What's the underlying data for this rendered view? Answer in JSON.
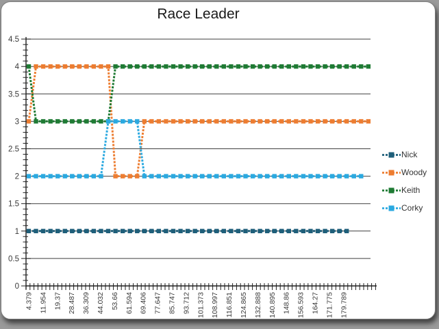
{
  "chart_data": {
    "type": "line",
    "title": "Race Leader",
    "xlabel": "",
    "ylabel": "",
    "ylim": [
      0,
      4.5
    ],
    "y_major_unit": 0.5,
    "y_minor_unit": 0.1,
    "grid": "horizontal-major",
    "legend_position": "right",
    "marker": "square",
    "line_style": "dashed",
    "x_label_rotation": -90,
    "y_tick_labels": [
      "0",
      "0.5",
      "1",
      "1.5",
      "2",
      "2.5",
      "3",
      "3.5",
      "4",
      "4.5"
    ],
    "x_tick_labels": [
      "4.379",
      "11.954",
      "19.37",
      "28.487",
      "36.309",
      "44.032",
      "53.66",
      "61.594",
      "69.406",
      "77.647",
      "85.747",
      "93.712",
      "101.373",
      "108.997",
      "116.851",
      "124.865",
      "132.888",
      "140.895",
      "148.86",
      "156.593",
      "164.27",
      "171.775",
      "179.789"
    ],
    "series": [
      {
        "name": "Nick",
        "color": "#1F5F7A",
        "values": [
          1,
          1,
          1,
          1,
          1,
          1,
          1,
          1,
          1,
          1,
          1,
          1,
          1,
          1,
          1,
          1,
          1,
          1,
          1,
          1,
          1,
          1,
          1,
          1,
          1,
          1,
          1,
          1,
          1,
          1,
          1,
          1,
          1,
          1,
          1,
          1,
          1,
          1,
          1,
          1,
          1,
          1,
          1,
          1,
          1,
          null,
          null,
          null
        ]
      },
      {
        "name": "Woody",
        "color": "#ED7D31",
        "values": [
          3,
          4,
          4,
          4,
          4,
          4,
          4,
          4,
          4,
          4,
          4,
          4,
          2,
          2,
          2,
          2,
          3,
          3,
          3,
          3,
          3,
          3,
          3,
          3,
          3,
          3,
          3,
          3,
          3,
          3,
          3,
          3,
          3,
          3,
          3,
          3,
          3,
          3,
          3,
          3,
          3,
          3,
          3,
          3,
          3,
          3,
          3,
          3
        ]
      },
      {
        "name": "Keith",
        "color": "#1F7B34",
        "values": [
          4,
          3,
          3,
          3,
          3,
          3,
          3,
          3,
          3,
          3,
          3,
          3,
          4,
          4,
          4,
          4,
          4,
          4,
          4,
          4,
          4,
          4,
          4,
          4,
          4,
          4,
          4,
          4,
          4,
          4,
          4,
          4,
          4,
          4,
          4,
          4,
          4,
          4,
          4,
          4,
          4,
          4,
          4,
          4,
          4,
          4,
          4,
          4
        ]
      },
      {
        "name": "Corky",
        "color": "#2BA9E0",
        "values": [
          2,
          2,
          2,
          2,
          2,
          2,
          2,
          2,
          2,
          2,
          2,
          3,
          3,
          3,
          3,
          3,
          2,
          2,
          2,
          2,
          2,
          2,
          2,
          2,
          2,
          2,
          2,
          2,
          2,
          2,
          2,
          2,
          2,
          2,
          2,
          2,
          2,
          2,
          2,
          2,
          2,
          2,
          2,
          2,
          2,
          2,
          2,
          null
        ]
      }
    ],
    "colors": {
      "axis": "#1f1f1f",
      "grid": "#3f3f3f",
      "tick_label": "#3a3a3a",
      "title": "#1a1a1a"
    }
  }
}
